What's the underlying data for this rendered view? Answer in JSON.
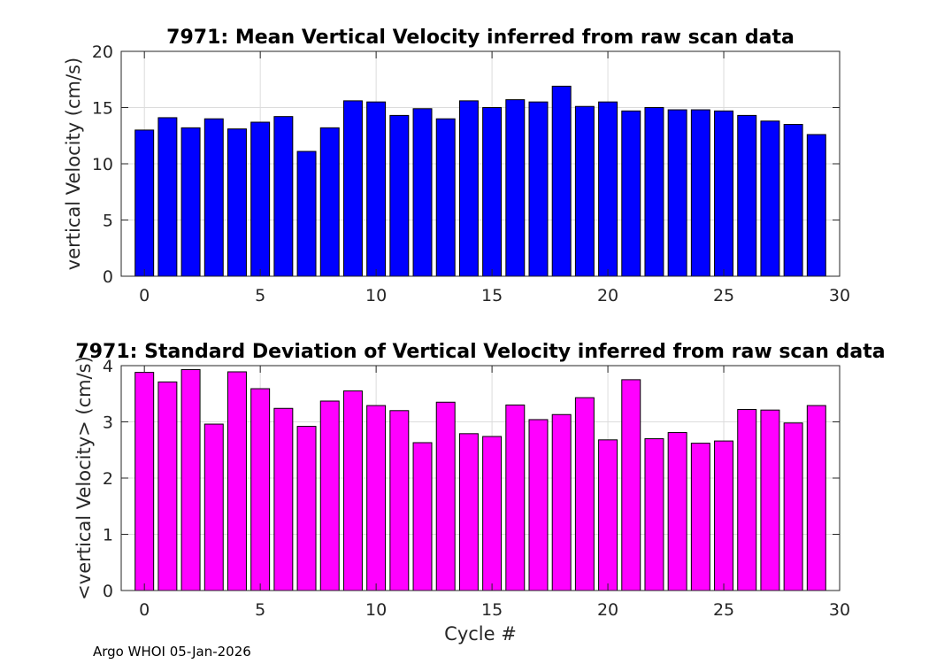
{
  "chart_data": [
    {
      "type": "bar",
      "title": "7971: Mean Vertical Velocity inferred from raw scan data",
      "xlabel": "",
      "ylabel": "vertical Velocity (cm/s)",
      "xlim": [
        -1,
        30
      ],
      "ylim": [
        0,
        20
      ],
      "xticks": [
        0,
        5,
        10,
        15,
        20,
        25,
        30
      ],
      "yticks": [
        0,
        5,
        10,
        15,
        20
      ],
      "grid": true,
      "bar_color": "#0000ff",
      "x": [
        0,
        1,
        2,
        3,
        4,
        5,
        6,
        7,
        8,
        9,
        10,
        11,
        12,
        13,
        14,
        15,
        16,
        17,
        18,
        19,
        20,
        21,
        22,
        23,
        24,
        25,
        26,
        27,
        28,
        29
      ],
      "values": [
        13.0,
        14.1,
        13.2,
        14.0,
        13.1,
        13.7,
        14.2,
        11.1,
        13.2,
        15.6,
        15.5,
        14.3,
        14.9,
        14.0,
        15.6,
        15.0,
        15.7,
        15.5,
        16.9,
        15.1,
        15.5,
        14.7,
        15.0,
        14.8,
        14.8,
        14.7,
        14.3,
        13.8,
        13.5,
        12.6
      ]
    },
    {
      "type": "bar",
      "title": "7971: Standard Deviation of Vertical Velocity inferred from raw scan data",
      "xlabel": "Cycle #",
      "ylabel": "<vertical Velocity> (cm/s)",
      "xlim": [
        -1,
        30
      ],
      "ylim": [
        0,
        4
      ],
      "xticks": [
        0,
        5,
        10,
        15,
        20,
        25,
        30
      ],
      "yticks": [
        0,
        1,
        2,
        3,
        4
      ],
      "grid": true,
      "bar_color": "#ff00ff",
      "x": [
        0,
        1,
        2,
        3,
        4,
        5,
        6,
        7,
        8,
        9,
        10,
        11,
        12,
        13,
        14,
        15,
        16,
        17,
        18,
        19,
        20,
        21,
        22,
        23,
        24,
        25,
        26,
        27,
        28,
        29
      ],
      "values": [
        3.88,
        3.71,
        3.93,
        2.96,
        3.89,
        3.59,
        3.24,
        2.92,
        3.37,
        3.55,
        3.29,
        3.2,
        2.63,
        3.35,
        2.79,
        2.74,
        3.3,
        3.04,
        3.13,
        3.43,
        2.68,
        3.75,
        2.7,
        2.81,
        2.62,
        2.66,
        3.22,
        3.21,
        2.98,
        3.29
      ]
    }
  ],
  "footer": "Argo WHOI 05-Jan-2026"
}
